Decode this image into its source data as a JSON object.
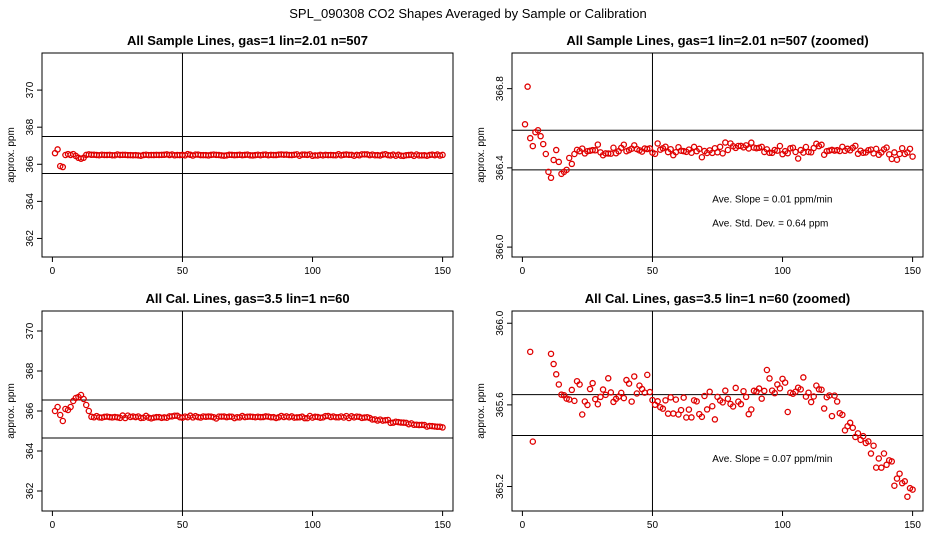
{
  "figure_title": "SPL_090308  CO2 Shapes Averaged by Sample or Calibration",
  "chart_data": [
    {
      "type": "scatter",
      "title": "All Sample Lines, gas=1 lin=2.01 n=507",
      "xlabel": "",
      "ylabel": "approx. ppm",
      "xlim": [
        -4,
        154
      ],
      "ylim": [
        361,
        372
      ],
      "x_ticks": [
        0,
        50,
        100,
        150
      ],
      "x_tick_labels": [
        "0",
        "50",
        "100",
        "150"
      ],
      "y_ticks": [
        362,
        364,
        366,
        368,
        370
      ],
      "y_tick_labels": [
        "362",
        "364",
        "366",
        "368",
        "370"
      ],
      "hlines": [
        367.5,
        365.5
      ],
      "vline": 50,
      "generator": {
        "kind": "sample_full"
      },
      "color": "#e00000",
      "annotations": []
    },
    {
      "type": "scatter",
      "title": "All Sample Lines, gas=1 lin=2.01 n=507 (zoomed)",
      "xlabel": "",
      "ylabel": "approx. ppm",
      "xlim": [
        -4,
        154
      ],
      "ylim": [
        365.95,
        366.98
      ],
      "x_ticks": [
        0,
        50,
        100,
        150
      ],
      "x_tick_labels": [
        "0",
        "50",
        "100",
        "150"
      ],
      "y_ticks": [
        366.0,
        366.4,
        366.8
      ],
      "y_tick_labels": [
        "366.0",
        "366.4",
        "366.8"
      ],
      "hlines": [
        366.59,
        366.39
      ],
      "vline": 50,
      "generator": {
        "kind": "sample_zoom"
      },
      "color": "#e00000",
      "annotations": [
        {
          "text": "Ave. Slope =  0.01  ppm/min",
          "x": 73,
          "y": 366.225
        },
        {
          "text": "Ave. Std. Dev. =  0.64  ppm",
          "x": 73,
          "y": 366.105
        }
      ]
    },
    {
      "type": "scatter",
      "title": "All Cal. Lines, gas=3.5 lin=1 n=60",
      "xlabel": "",
      "ylabel": "approx. ppm",
      "xlim": [
        -4,
        154
      ],
      "ylim": [
        361,
        371
      ],
      "x_ticks": [
        0,
        50,
        100,
        150
      ],
      "x_tick_labels": [
        "0",
        "50",
        "100",
        "150"
      ],
      "y_ticks": [
        362,
        364,
        366,
        368,
        370
      ],
      "y_tick_labels": [
        "362",
        "364",
        "366",
        "368",
        "370"
      ],
      "hlines": [
        366.55,
        364.65
      ],
      "vline": 50,
      "generator": {
        "kind": "cal_full"
      },
      "color": "#e00000",
      "annotations": []
    },
    {
      "type": "scatter",
      "title": "All Cal. Lines, gas=3.5 lin=1 n=60 (zoomed)",
      "xlabel": "",
      "ylabel": "approx. ppm",
      "xlim": [
        -4,
        154
      ],
      "ylim": [
        365.08,
        366.06
      ],
      "x_ticks": [
        0,
        50,
        100,
        150
      ],
      "x_tick_labels": [
        "0",
        "50",
        "100",
        "150"
      ],
      "y_ticks": [
        365.2,
        365.6,
        366.0
      ],
      "y_tick_labels": [
        "365.2",
        "365.6",
        "366.0"
      ],
      "hlines": [
        365.65,
        365.45
      ],
      "vline": 50,
      "generator": {
        "kind": "cal_zoom"
      },
      "color": "#e00000",
      "annotations": [
        {
          "text": "Ave. Slope =  0.07  ppm/min",
          "x": 73,
          "y": 365.32
        }
      ]
    }
  ]
}
